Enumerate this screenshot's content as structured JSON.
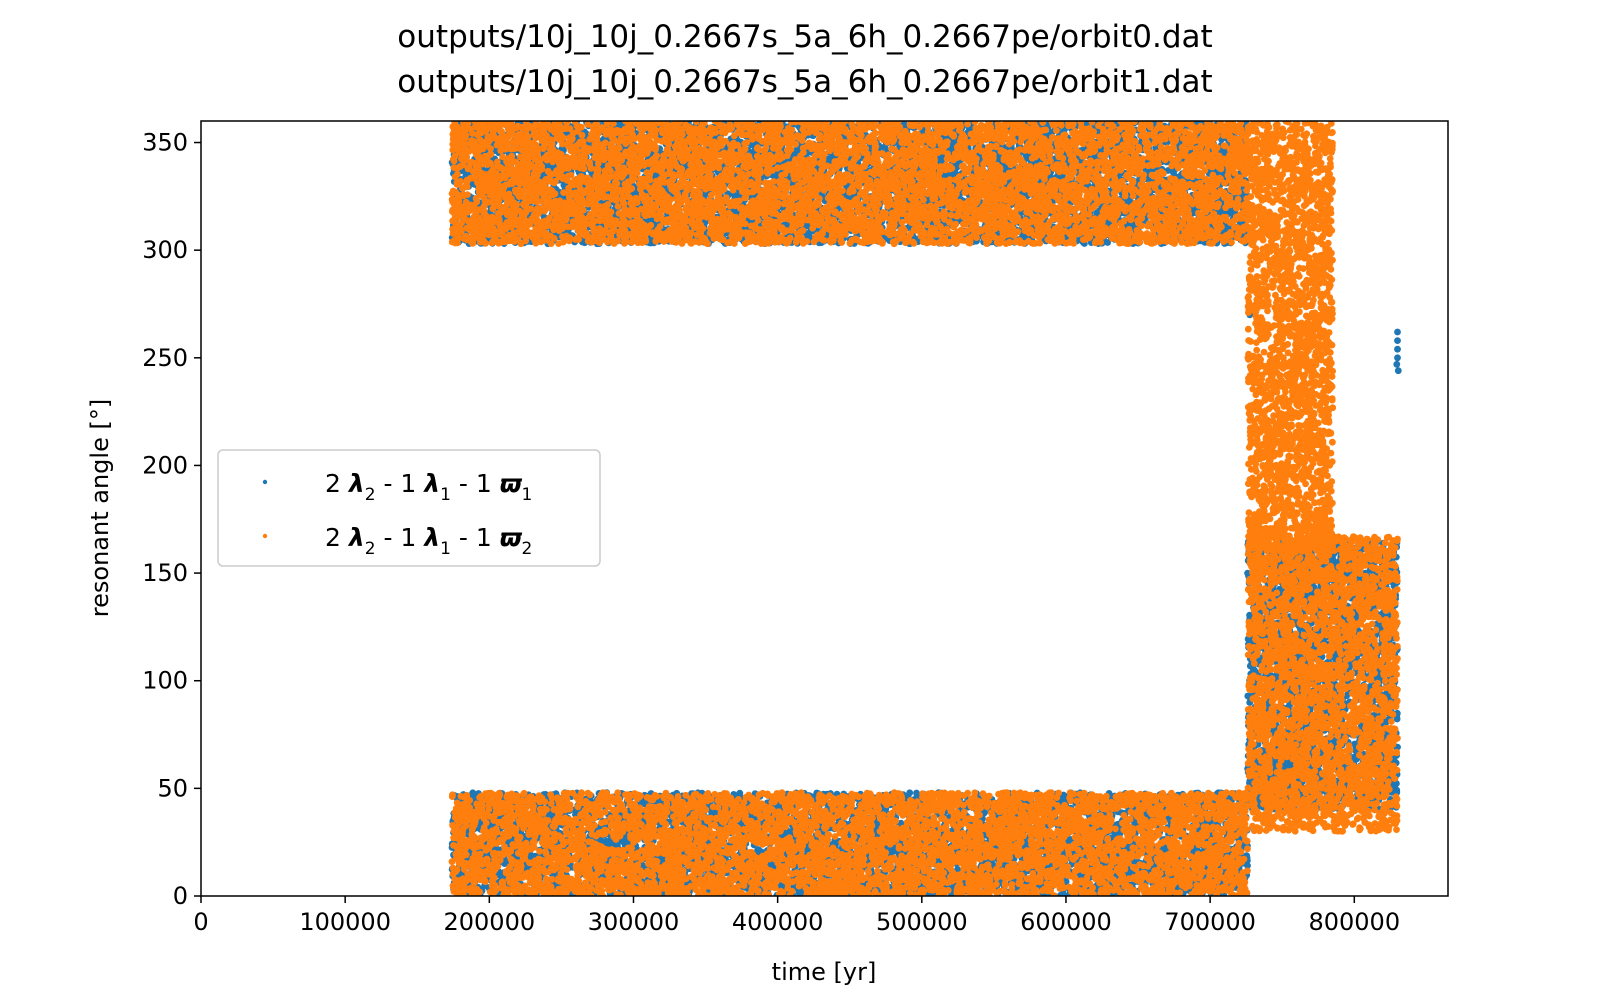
{
  "chart_data": {
    "type": "scatter",
    "title_lines": [
      "outputs/10j_10j_0.2667s_5a_6h_0.2667pe/orbit0.dat",
      "outputs/10j_10j_0.2667s_5a_6h_0.2667pe/orbit1.dat"
    ],
    "xlabel": "time [yr]",
    "ylabel": "resonant angle [°]",
    "xlim": [
      0,
      865000
    ],
    "ylim": [
      0,
      360
    ],
    "xticks": [
      0,
      100000,
      200000,
      300000,
      400000,
      500000,
      600000,
      700000,
      800000
    ],
    "xtick_labels": [
      "0",
      "100000",
      "200000",
      "300000",
      "400000",
      "500000",
      "600000",
      "700000",
      "800000"
    ],
    "yticks": [
      0,
      50,
      100,
      150,
      200,
      250,
      300,
      350
    ],
    "ytick_labels": [
      "0",
      "50",
      "100",
      "150",
      "200",
      "250",
      "300",
      "350"
    ],
    "grid": false,
    "legend_position": "center-left",
    "series": [
      {
        "name": "2 λ2 - 1 λ1 - 1 ϖ1",
        "label_parts": {
          "c1": "2 ",
          "sym1": "λ",
          "sub1": "2",
          "c2": " - 1 ",
          "sym2": "λ",
          "sub2": "1",
          "c3": " - 1 ",
          "sym3": "ϖ",
          "sub3": "1"
        },
        "color": "#1f77b4",
        "regions": [
          {
            "x_start": 174000,
            "x_end": 726000,
            "y_min": 0,
            "y_max": 48
          },
          {
            "x_start": 174000,
            "x_end": 726000,
            "y_min": 303,
            "y_max": 360
          },
          {
            "x_start": 726000,
            "x_end": 830000,
            "y_min": 40,
            "y_max": 165
          }
        ],
        "isolated_points": [
          {
            "x": 830000,
            "y": 262
          },
          {
            "x": 830000,
            "y": 258
          },
          {
            "x": 830000,
            "y": 254
          },
          {
            "x": 830000,
            "y": 250
          },
          {
            "x": 829500,
            "y": 247
          },
          {
            "x": 830500,
            "y": 244
          },
          {
            "x": 726000,
            "y": 150
          },
          {
            "x": 727000,
            "y": 148
          },
          {
            "x": 727500,
            "y": 270
          }
        ]
      },
      {
        "name": "2 λ2 - 1 λ1 - 1 ϖ2",
        "label_parts": {
          "c1": "2 ",
          "sym1": "λ",
          "sub1": "2",
          "c2": " - 1 ",
          "sym2": "λ",
          "sub2": "1",
          "c3": " - 1 ",
          "sym3": "ϖ",
          "sub3": "2"
        },
        "color": "#ff7f0e",
        "regions": [
          {
            "x_start": 174000,
            "x_end": 726000,
            "y_min": 0,
            "y_max": 48
          },
          {
            "x_start": 174000,
            "x_end": 726000,
            "y_min": 303,
            "y_max": 360
          },
          {
            "x_start": 726000,
            "x_end": 830000,
            "y_min": 30,
            "y_max": 167
          },
          {
            "x_start": 726000,
            "x_end": 785000,
            "y_min": 160,
            "y_max": 360
          }
        ]
      }
    ]
  }
}
